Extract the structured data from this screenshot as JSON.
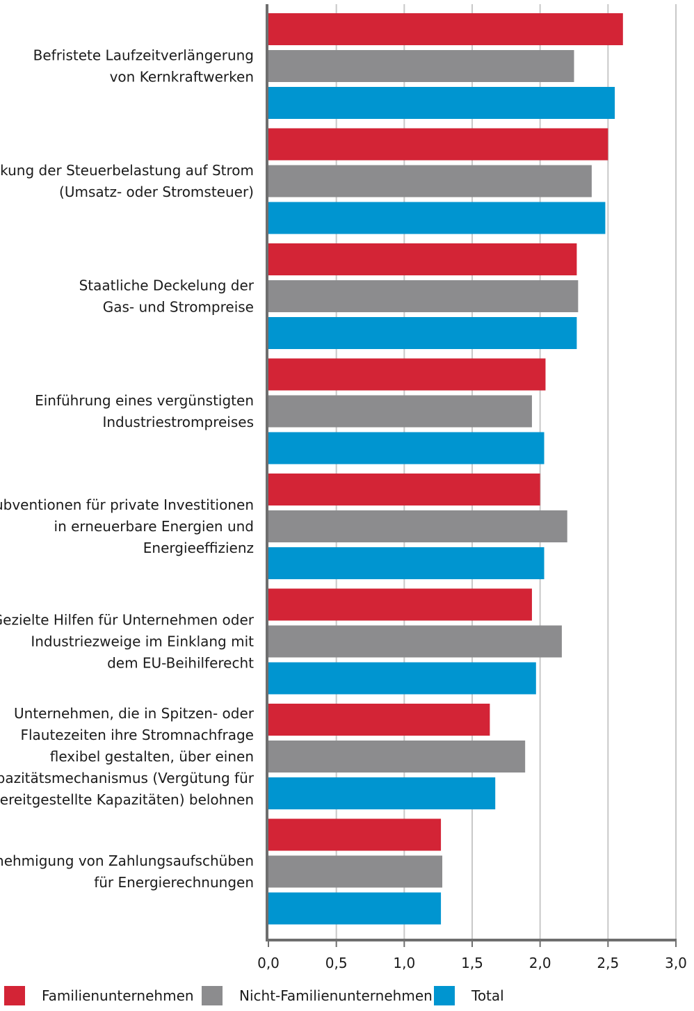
{
  "chart_data": {
    "type": "bar",
    "orientation": "horizontal",
    "categories": [
      "Befristete Laufzeitverlängerung von Kernkraftwerken",
      "Senkung der Steuerbelastung auf Strom (Umsatz- oder Stromsteuer)",
      "Staatliche Deckelung der Gas- und Strompreise",
      "Einführung eines vergünstigten Industriestrompreises",
      "Subventionen für private Investitionen in erneuerbare Energien und Energieeffizienz",
      "Gezielte Hilfen für Unternehmen oder Industriezweige im Einklang mit dem EU-Beihilferecht",
      "Unternehmen, die in Spitzen- oder Flautezeiten ihre Stromnachfrage flexibel gestalten, über einen Kapazitätsmechanismus (Vergütung für bereitgestellte Kapazitäten) belohnen",
      "Genehmigung von Zahlungsaufschüben für Energierechnungen"
    ],
    "category_lines": [
      [
        "Befristete Laufzeitverlängerung",
        "von Kernkraftwerken"
      ],
      [
        "Senkung der Steuerbelastung auf Strom",
        "(Umsatz- oder Stromsteuer)"
      ],
      [
        "Staatliche Deckelung der",
        "Gas- und Strompreise"
      ],
      [
        "Einführung eines vergünstigten",
        "Industriestrompreises"
      ],
      [
        "Subventionen für private Investitionen",
        "in erneuerbare Energien und",
        "Energieeffizienz"
      ],
      [
        "Gezielte Hilfen für Unternehmen oder",
        "Industriezweige im Einklang mit",
        "dem EU-Beihilferecht"
      ],
      [
        "Unternehmen, die in Spitzen- oder",
        "Flautezeiten ihre Stromnachfrage",
        "flexibel gestalten, über einen",
        "Kapazitätsmechanismus (Vergütung für",
        "bereitgestellte Kapazitäten) belohnen"
      ],
      [
        "Genehmigung von Zahlungsaufschüben",
        "für Energierechnungen"
      ]
    ],
    "series": [
      {
        "name": "Familienunternehmen",
        "color": "#d32436",
        "values": [
          2.61,
          2.5,
          2.27,
          2.04,
          2.0,
          1.94,
          1.63,
          1.27
        ]
      },
      {
        "name": "Nicht-Familienunternehmen",
        "color": "#8c8c8e",
        "values": [
          2.25,
          2.38,
          2.28,
          1.94,
          2.2,
          2.16,
          1.89,
          1.28
        ]
      },
      {
        "name": "Total",
        "color": "#0095d0",
        "values": [
          2.55,
          2.48,
          2.27,
          2.03,
          2.03,
          1.97,
          1.67,
          1.27
        ]
      }
    ],
    "xlim": [
      0,
      3.0
    ],
    "xticks": [
      "0,0",
      "0,5",
      "1,0",
      "1,5",
      "2,0",
      "2,5",
      "3,0"
    ],
    "grid": true,
    "legend_position": "bottom",
    "title": "",
    "xlabel": "",
    "ylabel": ""
  }
}
